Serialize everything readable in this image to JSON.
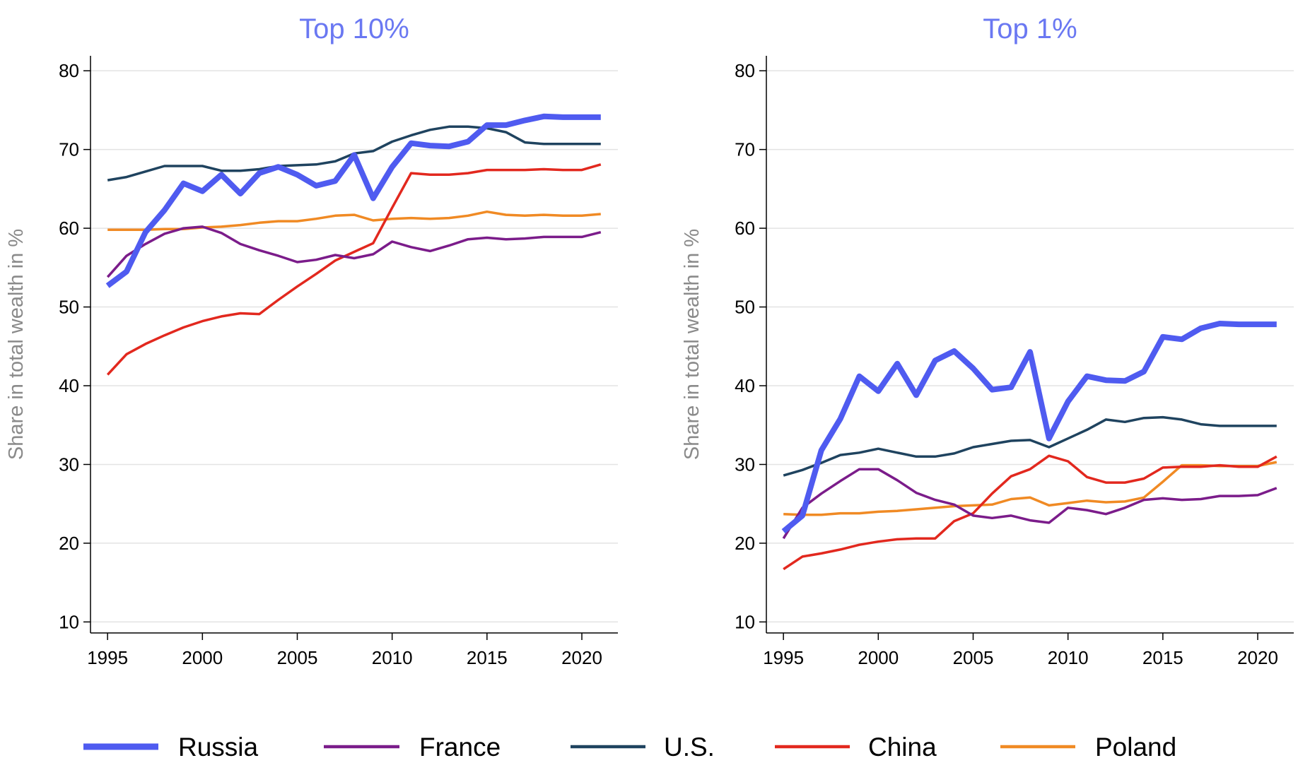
{
  "chart_data": [
    {
      "type": "line",
      "title": "Top 10%",
      "y_label": "Share in total wealth in %",
      "x": [
        1995,
        1996,
        1997,
        1998,
        1999,
        2000,
        2001,
        2002,
        2003,
        2004,
        2005,
        2006,
        2007,
        2008,
        2009,
        2010,
        2011,
        2012,
        2013,
        2014,
        2015,
        2016,
        2017,
        2018,
        2019,
        2020,
        2021
      ],
      "xlim": [
        1994.1,
        2021.9
      ],
      "xticks": [
        1995,
        2000,
        2005,
        2010,
        2015,
        2020
      ],
      "ylim": [
        8.6,
        81.9
      ],
      "yticks": [
        10,
        20,
        30,
        40,
        50,
        60,
        70,
        80
      ],
      "grid": true,
      "series": [
        {
          "name": "Russia",
          "color": "#4f5bf0",
          "values": [
            52.7,
            54.5,
            59.5,
            62.3,
            65.7,
            64.7,
            66.8,
            64.4,
            67.0,
            67.8,
            66.8,
            65.4,
            66.0,
            69.3,
            63.8,
            67.8,
            70.8,
            70.5,
            70.4,
            71.0,
            73.1,
            73.1,
            73.7,
            74.2,
            74.1,
            74.1,
            74.1
          ]
        },
        {
          "name": "France",
          "color": "#7b1c8a",
          "values": [
            53.8,
            56.5,
            58.0,
            59.3,
            60.0,
            60.2,
            59.4,
            58.0,
            57.2,
            56.5,
            55.7,
            56.0,
            56.6,
            56.2,
            56.7,
            58.3,
            57.6,
            57.1,
            57.8,
            58.6,
            58.8,
            58.6,
            58.7,
            58.9,
            58.9,
            58.9,
            59.5
          ]
        },
        {
          "name": "U.S.",
          "color": "#1f435f",
          "values": [
            66.1,
            66.5,
            67.2,
            67.9,
            67.9,
            67.9,
            67.3,
            67.3,
            67.5,
            67.9,
            68.0,
            68.1,
            68.5,
            69.5,
            69.8,
            71.0,
            71.8,
            72.5,
            72.9,
            72.9,
            72.7,
            72.2,
            70.9,
            70.7,
            70.7,
            70.7,
            70.7
          ]
        },
        {
          "name": "China",
          "color": "#e2281e",
          "values": [
            41.4,
            44.0,
            45.3,
            46.4,
            47.4,
            48.2,
            48.8,
            49.2,
            49.1,
            50.9,
            52.6,
            54.2,
            55.9,
            57.0,
            58.1,
            62.6,
            67.0,
            66.8,
            66.8,
            67.0,
            67.4,
            67.4,
            67.4,
            67.5,
            67.4,
            67.4,
            68.1
          ]
        },
        {
          "name": "Poland",
          "color": "#f08a24",
          "values": [
            59.8,
            59.8,
            59.8,
            59.9,
            59.9,
            60.1,
            60.2,
            60.4,
            60.7,
            60.9,
            60.9,
            61.2,
            61.6,
            61.7,
            61.0,
            61.2,
            61.3,
            61.2,
            61.3,
            61.6,
            62.1,
            61.7,
            61.6,
            61.7,
            61.6,
            61.6,
            61.8
          ]
        }
      ]
    },
    {
      "type": "line",
      "title": "Top 1%",
      "y_label": "Share in total wealth in %",
      "x": [
        1995,
        1996,
        1997,
        1998,
        1999,
        2000,
        2001,
        2002,
        2003,
        2004,
        2005,
        2006,
        2007,
        2008,
        2009,
        2010,
        2011,
        2012,
        2013,
        2014,
        2015,
        2016,
        2017,
        2018,
        2019,
        2020,
        2021
      ],
      "xlim": [
        1994.1,
        2021.9
      ],
      "xticks": [
        1995,
        2000,
        2005,
        2010,
        2015,
        2020
      ],
      "ylim": [
        8.6,
        81.9
      ],
      "yticks": [
        10,
        20,
        30,
        40,
        50,
        60,
        70,
        80
      ],
      "grid": true,
      "series": [
        {
          "name": "Russia",
          "color": "#4f5bf0",
          "values": [
            21.5,
            23.5,
            31.8,
            35.8,
            41.2,
            39.3,
            42.8,
            38.8,
            43.2,
            44.4,
            42.2,
            39.5,
            39.8,
            44.3,
            33.3,
            38.0,
            41.2,
            40.7,
            40.6,
            41.8,
            46.2,
            45.9,
            47.3,
            47.9,
            47.8,
            47.8,
            47.8
          ]
        },
        {
          "name": "France",
          "color": "#7b1c8a",
          "values": [
            20.6,
            24.5,
            26.3,
            27.9,
            29.4,
            29.4,
            28.0,
            26.4,
            25.5,
            24.9,
            23.5,
            23.2,
            23.5,
            22.9,
            22.6,
            24.5,
            24.2,
            23.7,
            24.5,
            25.5,
            25.7,
            25.5,
            25.6,
            26.0,
            26.0,
            26.1,
            27.0
          ]
        },
        {
          "name": "U.S.",
          "color": "#1f435f",
          "values": [
            28.6,
            29.3,
            30.2,
            31.2,
            31.5,
            32.0,
            31.5,
            31.0,
            31.0,
            31.4,
            32.2,
            32.6,
            33.0,
            33.1,
            32.2,
            33.3,
            34.4,
            35.7,
            35.4,
            35.9,
            36.0,
            35.7,
            35.1,
            34.9,
            34.9,
            34.9,
            34.9
          ]
        },
        {
          "name": "China",
          "color": "#e2281e",
          "values": [
            16.7,
            18.3,
            18.7,
            19.2,
            19.8,
            20.2,
            20.5,
            20.6,
            20.6,
            22.8,
            23.8,
            26.3,
            28.5,
            29.4,
            31.1,
            30.4,
            28.4,
            27.7,
            27.7,
            28.2,
            29.6,
            29.7,
            29.7,
            29.9,
            29.7,
            29.7,
            31.0
          ]
        },
        {
          "name": "Poland",
          "color": "#f08a24",
          "values": [
            23.7,
            23.6,
            23.6,
            23.8,
            23.8,
            24.0,
            24.1,
            24.3,
            24.5,
            24.7,
            24.8,
            24.9,
            25.6,
            25.8,
            24.8,
            25.1,
            25.4,
            25.2,
            25.3,
            25.8,
            27.8,
            29.9,
            29.9,
            29.8,
            29.8,
            29.8,
            30.3
          ]
        }
      ]
    }
  ]
}
